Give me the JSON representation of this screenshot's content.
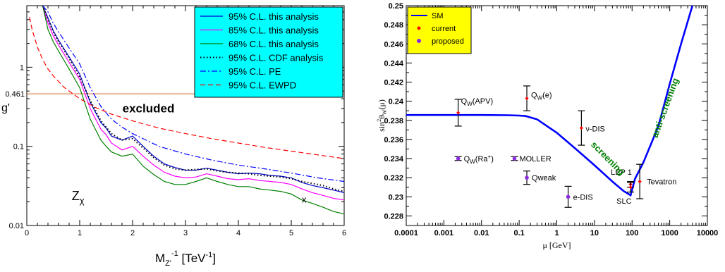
{
  "chart_data": [
    {
      "type": "line",
      "xlabel_main": "M",
      "xlabel_sub": "Z'",
      "xlabel_sup": "-1",
      "xlabel_unit": " [TeV",
      "xlabel_unit_sup": "-1",
      "xlabel_close": "]",
      "ylabel": "g'",
      "x_scale": "linear",
      "y_scale": "log",
      "xlim": [
        0,
        6
      ],
      "ylim": [
        0.01,
        6
      ],
      "x_ticks": [
        "0",
        "1",
        "2",
        "3",
        "4",
        "5",
        "6"
      ],
      "y_ticks": [
        "0.01",
        "0.1",
        "1"
      ],
      "ref_line": {
        "y": 0.461,
        "label": "0.461",
        "color": "#d2691e"
      },
      "annotations": [
        {
          "text": "excluded",
          "x": 2.3,
          "y": 0.27
        },
        {
          "text": "Z",
          "sub": "χ",
          "x": 0.85,
          "y": 0.021
        },
        {
          "text": "x",
          "x": 5.2,
          "y": 0.0195
        }
      ],
      "legend_position": "top-right",
      "legend_bg": "#00ffff",
      "series": [
        {
          "name": "95% C.L. this analysis",
          "color": "#0000cc",
          "dash": "solid",
          "x": [
            0.3,
            0.4,
            0.5,
            0.6,
            0.8,
            1.0,
            1.2,
            1.4,
            1.5,
            1.6,
            1.8,
            2.0,
            2.2,
            2.4,
            2.6,
            2.8,
            3.0,
            3.2,
            3.4,
            3.6,
            3.8,
            4.0,
            4.2,
            4.4,
            4.6,
            4.8,
            5.0,
            5.2,
            5.4,
            5.6,
            5.8,
            6.0
          ],
          "y": [
            6,
            4.2,
            2.9,
            2.2,
            1.35,
            0.82,
            0.36,
            0.2,
            0.17,
            0.135,
            0.12,
            0.135,
            0.1,
            0.075,
            0.06,
            0.054,
            0.05,
            0.05,
            0.053,
            0.05,
            0.047,
            0.045,
            0.046,
            0.045,
            0.043,
            0.042,
            0.04,
            0.035,
            0.032,
            0.03,
            0.028,
            0.026
          ]
        },
        {
          "name": "85% C.L. this analysis",
          "color": "#ff00ff",
          "dash": "solid",
          "x": [
            0.3,
            0.4,
            0.5,
            0.6,
            0.8,
            1.0,
            1.2,
            1.4,
            1.5,
            1.6,
            1.8,
            2.0,
            2.2,
            2.4,
            2.6,
            2.8,
            3.0,
            3.2,
            3.4,
            3.6,
            3.8,
            4.0,
            4.2,
            4.4,
            4.6,
            4.8,
            5.0,
            5.2,
            5.4,
            5.6,
            5.8,
            6.0
          ],
          "y": [
            6,
            3.6,
            2.5,
            1.9,
            1.15,
            0.7,
            0.3,
            0.165,
            0.14,
            0.11,
            0.09,
            0.1,
            0.075,
            0.058,
            0.047,
            0.042,
            0.04,
            0.041,
            0.045,
            0.042,
            0.039,
            0.038,
            0.039,
            0.037,
            0.036,
            0.035,
            0.033,
            0.029,
            0.026,
            0.024,
            0.022,
            0.021
          ]
        },
        {
          "name": "68% C.L. this analysis",
          "color": "#008000",
          "dash": "solid",
          "x": [
            0.3,
            0.4,
            0.5,
            0.6,
            0.8,
            1.0,
            1.2,
            1.4,
            1.5,
            1.6,
            1.8,
            2.0,
            2.2,
            2.4,
            2.6,
            2.8,
            3.0,
            3.2,
            3.4,
            3.6,
            3.8,
            4.0,
            4.2,
            4.4,
            4.6,
            4.8,
            5.0,
            5.2,
            5.4,
            5.6,
            5.8,
            6.0
          ],
          "y": [
            6,
            3.0,
            2.1,
            1.6,
            0.95,
            0.55,
            0.22,
            0.12,
            0.1,
            0.085,
            0.075,
            0.08,
            0.056,
            0.044,
            0.036,
            0.033,
            0.033,
            0.036,
            0.04,
            0.036,
            0.033,
            0.031,
            0.031,
            0.029,
            0.028,
            0.027,
            0.025,
            0.021,
            0.019,
            0.017,
            0.015,
            0.014
          ]
        },
        {
          "name": "95% C.L. CDF analysis",
          "color": "#000000",
          "dash": "dotted",
          "x": [
            0.3,
            0.4,
            0.5,
            0.6,
            0.8,
            1.0,
            1.2,
            1.4,
            1.6,
            1.8,
            2.0,
            2.2,
            2.4,
            2.6,
            2.8,
            3.0,
            3.2,
            3.4,
            3.6,
            3.8,
            4.0,
            4.2,
            4.4,
            4.6,
            4.8,
            5.0,
            5.2,
            5.4,
            5.6,
            5.8,
            6.0
          ],
          "y": [
            6,
            4.0,
            2.8,
            2.1,
            1.3,
            0.75,
            0.38,
            0.21,
            0.145,
            0.12,
            0.125,
            0.095,
            0.072,
            0.058,
            0.052,
            0.05,
            0.051,
            0.052,
            0.049,
            0.047,
            0.046,
            0.045,
            0.043,
            0.042,
            0.041,
            0.039,
            0.036,
            0.034,
            0.032,
            0.029,
            0.027
          ]
        },
        {
          "name": "95% C.L. PE",
          "color": "#0000ff",
          "dash": "dashdot",
          "x": [
            0.3,
            0.4,
            0.5,
            0.6,
            0.8,
            1.0,
            1.2,
            1.4,
            1.6,
            1.8,
            2.0,
            2.5,
            3.0,
            3.5,
            4.0,
            4.5,
            5.0,
            5.5,
            6.0
          ],
          "y": [
            6,
            5.0,
            3.6,
            2.8,
            1.75,
            1.1,
            0.55,
            0.32,
            0.22,
            0.175,
            0.145,
            0.1,
            0.08,
            0.067,
            0.058,
            0.052,
            0.046,
            0.04,
            0.036
          ]
        },
        {
          "name": "95% C.L. EWPD",
          "color": "#ff0000",
          "dash": "dashed",
          "x": [
            0.05,
            0.1,
            0.2,
            0.3,
            0.4,
            0.5,
            0.7,
            1.0,
            1.3,
            1.6,
            2.0,
            2.5,
            3.0,
            3.5,
            4.0,
            4.5,
            5.0,
            5.5,
            6.0
          ],
          "y": [
            4.3,
            3.0,
            1.8,
            1.25,
            0.95,
            0.78,
            0.56,
            0.4,
            0.31,
            0.255,
            0.21,
            0.17,
            0.145,
            0.125,
            0.11,
            0.097,
            0.087,
            0.078,
            0.07
          ]
        }
      ]
    },
    {
      "type": "line",
      "xlabel": "μ [GeV]",
      "ylabel_parts": {
        "pre": "sin",
        "sup": "2",
        "mid": "θ",
        "sub": "W",
        "post": "(μ)"
      },
      "x_scale": "log",
      "y_scale": "linear",
      "xlim": [
        0.0001,
        10000
      ],
      "ylim": [
        0.227,
        0.25
      ],
      "x_ticks": [
        "0.0001",
        "0.001",
        "0.01",
        "0.1",
        "1",
        "10",
        "100",
        "1000",
        "10000"
      ],
      "y_ticks": [
        "0.228",
        "0.23",
        "0.232",
        "0.234",
        "0.236",
        "0.238",
        "0.24",
        "0.242",
        "0.244",
        "0.246",
        "0.248",
        "0.25"
      ],
      "legend_position": "top-left",
      "legend_bg": "#ffff00",
      "legend": [
        {
          "name": "SM",
          "marker": "line",
          "color": "#0000ff"
        },
        {
          "name": "current",
          "marker": "diamond",
          "color": "#ff0000"
        },
        {
          "name": "proposed",
          "marker": "circle",
          "color": "#8a2be2"
        }
      ],
      "series": [
        {
          "name": "SM",
          "color": "#0000ff",
          "x": [
            0.0001,
            0.001,
            0.01,
            0.05,
            0.1,
            0.15,
            0.3,
            1,
            3,
            10,
            30,
            60,
            91.2,
            120,
            200,
            500,
            1000,
            2000,
            4000
          ],
          "y": [
            0.23856,
            0.23856,
            0.23856,
            0.23854,
            0.2385,
            0.23845,
            0.2381,
            0.2367,
            0.2351,
            0.2333,
            0.2316,
            0.2306,
            0.23016,
            0.2319,
            0.2336,
            0.2374,
            0.2418,
            0.246,
            0.25
          ]
        },
        {
          "name": "current",
          "color": "#ff0000",
          "points": [
            {
              "label": "Q_W(APV)",
              "x": 0.0024,
              "y": 0.2388,
              "err": 0.0014
            },
            {
              "label": "Q_W(e)",
              "x": 0.16,
              "y": 0.2403,
              "err": 0.0013
            },
            {
              "label": "ν-DIS",
              "x": 4.5,
              "y": 0.2372,
              "err": 0.0018
            },
            {
              "label": "LEP 1",
              "x": 91.2,
              "y": 0.2313,
              "err": 0.0003
            },
            {
              "label": "SLC",
              "x": 91.2,
              "y": 0.231,
              "err": 0.0005
            },
            {
              "label": "Tevatron",
              "x": 160,
              "y": 0.2316,
              "err": 0.0018
            }
          ]
        },
        {
          "name": "proposed",
          "color": "#8a2be2",
          "points": [
            {
              "label": "Q_W(Ra⁺)",
              "x": 0.0024,
              "y": 0.234,
              "err": 0.0002
            },
            {
              "label": "MOLLER",
              "x": 0.075,
              "y": 0.234,
              "err": 0.0002
            },
            {
              "label": "Qweak",
              "x": 0.16,
              "y": 0.232,
              "err": 0.0007
            },
            {
              "label": "e-DIS",
              "x": 2.0,
              "y": 0.23,
              "err": 0.0011
            }
          ]
        }
      ],
      "annotations": [
        {
          "text": "screening",
          "color": "#008000",
          "angle": 45
        },
        {
          "text": "anti-screening",
          "color": "#008000",
          "angle": -70
        }
      ]
    }
  ]
}
